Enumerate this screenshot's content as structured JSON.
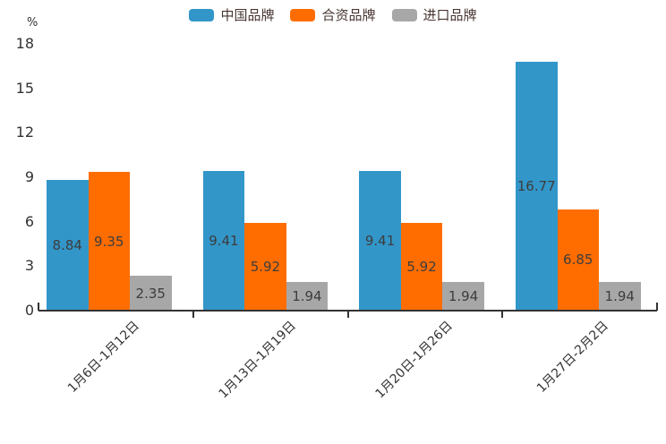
{
  "chart_data": {
    "type": "bar",
    "title": "",
    "unit_label": "%",
    "categories": [
      "1月6日-1月12日",
      "1月13日-1月19日",
      "1月20日-1月26日",
      "1月27日-2月2日"
    ],
    "series": [
      {
        "name": "中国品牌",
        "color": "#3296c9",
        "values": [
          8.84,
          9.41,
          9.41,
          16.77
        ]
      },
      {
        "name": "合资品牌",
        "color": "#ff6d00",
        "values": [
          9.35,
          5.92,
          5.92,
          6.85
        ]
      },
      {
        "name": "进口品牌",
        "color": "#a7a7a7",
        "values": [
          2.35,
          1.94,
          1.94,
          1.94
        ]
      }
    ],
    "value_labels": [
      [
        "8.84",
        "9.41",
        "9.41",
        "16.77"
      ],
      [
        "9.35",
        "5.92",
        "5.92",
        "6.85"
      ],
      [
        "2.35",
        "1.94",
        "1.94",
        "1.94"
      ]
    ],
    "ylim": [
      0,
      18
    ],
    "y_ticks": [
      0,
      3,
      6,
      9,
      12,
      15,
      18
    ],
    "grid": false,
    "legend_position": "top",
    "value_labels_shown": true,
    "colors": {
      "background": "#ffffff",
      "axis": "#333333",
      "tick_label": "#333333",
      "value_label": "#3d3d3d",
      "legend_text": "#463530"
    }
  }
}
